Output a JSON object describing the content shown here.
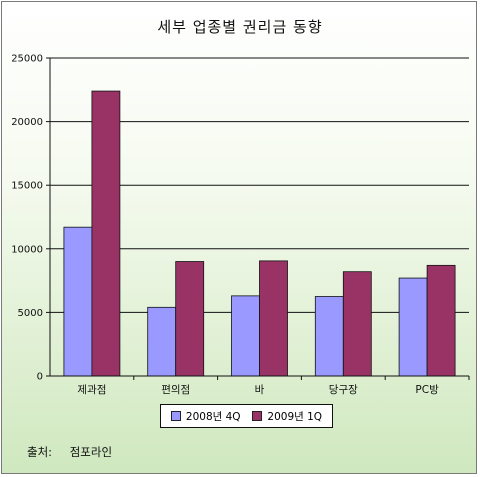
{
  "chart_data": {
    "type": "bar",
    "title": "세부 업종별 권리금 동향",
    "categories": [
      "제과점",
      "편의점",
      "바",
      "당구장",
      "PC방"
    ],
    "series": [
      {
        "name": "2008년 4Q",
        "color": "#9999ff",
        "values": [
          11700,
          5400,
          6300,
          6250,
          7700
        ]
      },
      {
        "name": "2009년 1Q",
        "color": "#993366",
        "values": [
          22400,
          9000,
          9050,
          8200,
          8700
        ]
      }
    ],
    "ylim": [
      0,
      25000
    ],
    "yticks": [
      0,
      5000,
      10000,
      15000,
      20000,
      25000
    ],
    "xlabel": "",
    "ylabel": "",
    "grid": true,
    "legend_position": "bottom"
  },
  "source": {
    "label": "출처:",
    "value": "점포라인"
  }
}
